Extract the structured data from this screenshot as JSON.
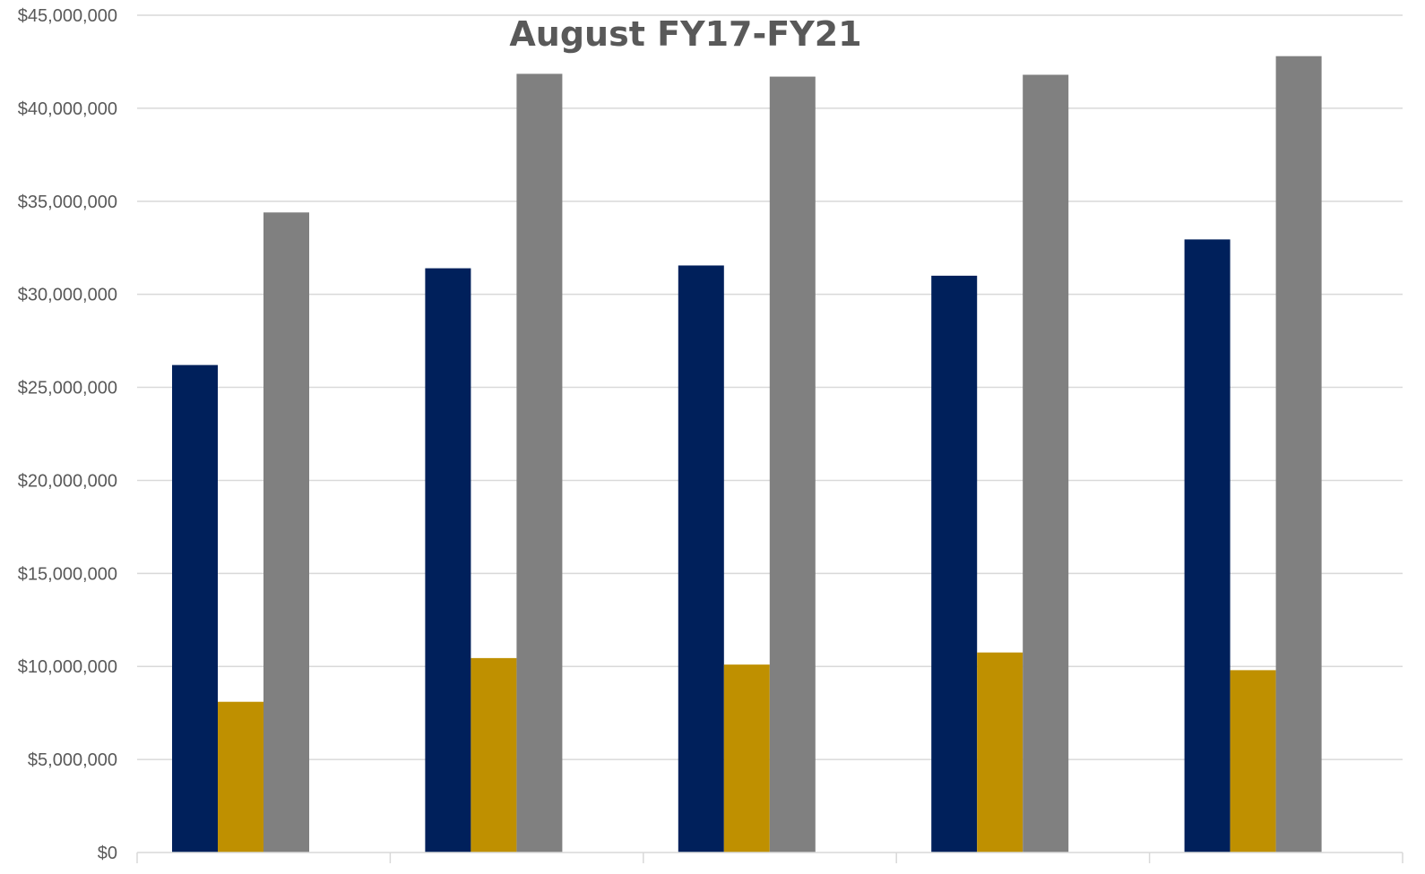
{
  "chart_data": {
    "type": "bar",
    "title": "August FY17-FY21",
    "xlabel": "",
    "ylabel": "",
    "ylim": [
      0,
      45000000
    ],
    "y_tick_labels": [
      "$0",
      "$5,000,000",
      "$10,000,000",
      "$15,000,000",
      "$20,000,000",
      "$25,000,000",
      "$30,000,000",
      "$35,000,000",
      "$40,000,000",
      "$45,000,000"
    ],
    "y_tick_values": [
      0,
      5000000,
      10000000,
      15000000,
      20000000,
      25000000,
      30000000,
      35000000,
      40000000,
      45000000
    ],
    "grid": true,
    "categories": [
      "",
      "",
      "",
      "",
      ""
    ],
    "series": [
      {
        "color": "#00205b",
        "values": [
          26200000,
          31400000,
          31550000,
          31000000,
          32950000
        ]
      },
      {
        "color": "#bf9000",
        "values": [
          8100000,
          10450000,
          10100000,
          10750000,
          9800000
        ]
      },
      {
        "color": "#808080",
        "values": [
          34400000,
          41850000,
          41700000,
          41800000,
          42800000
        ]
      }
    ]
  }
}
